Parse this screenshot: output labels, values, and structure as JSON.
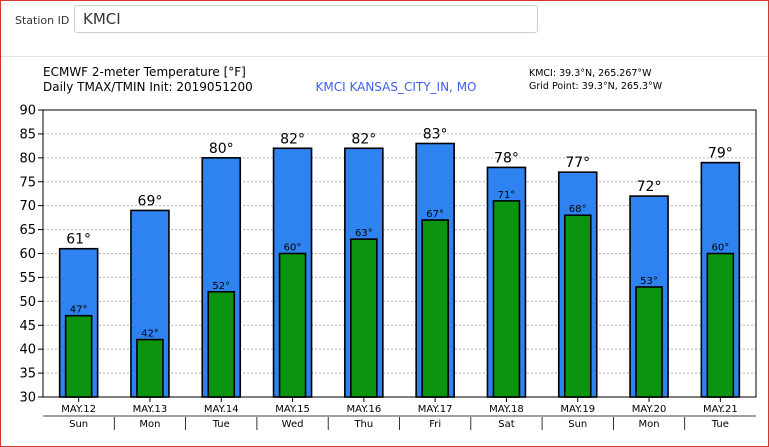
{
  "station": {
    "label": "Station ID",
    "value": "KMCI"
  },
  "chart_data": {
    "type": "bar",
    "title_line1": "ECMWF 2-meter Temperature [°F]",
    "title_line2": "Daily TMAX/TMIN Init: 2019051200",
    "center_label": "KMCI KANSAS_CITY_IN, MO",
    "location_line1": "KMCI: 39.3°N, 265.267°W",
    "location_line2": "Grid Point: 39.3°N, 265.3°W",
    "categories": [
      "MAY.12",
      "MAY.13",
      "MAY.14",
      "MAY.15",
      "MAY.16",
      "MAY.17",
      "MAY.18",
      "MAY.19",
      "MAY.20",
      "MAY.21"
    ],
    "days": [
      "Sun",
      "Mon",
      "Tue",
      "Wed",
      "Thu",
      "Fri",
      "Sat",
      "Sun",
      "Mon",
      "Tue"
    ],
    "series": [
      {
        "values": [
          61,
          69,
          80,
          82,
          82,
          83,
          78,
          77,
          72,
          79
        ]
      },
      {
        "values": [
          47,
          42,
          52,
          60,
          63,
          67,
          71,
          68,
          53,
          60
        ]
      }
    ],
    "ylim": [
      30,
      90
    ],
    "yticks": [
      30,
      35,
      40,
      45,
      50,
      55,
      60,
      65,
      70,
      75,
      80,
      85,
      90
    ],
    "grid": true,
    "colors": {
      "tmax": "#2f83f0",
      "tmin": "#0a9410",
      "center_label": "#3d5ef2"
    }
  }
}
